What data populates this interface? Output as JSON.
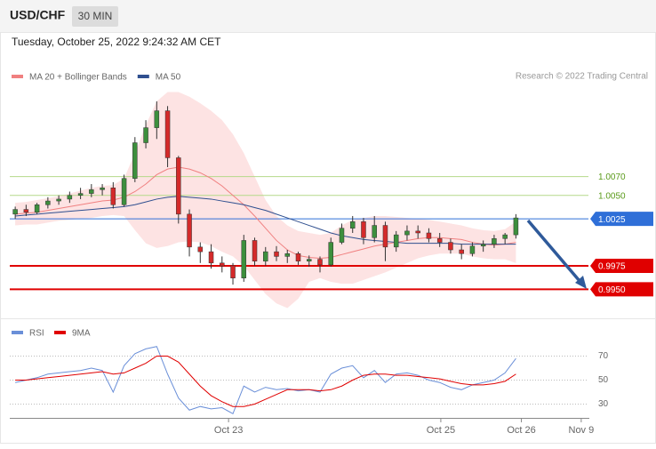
{
  "chart_data": [
    {
      "type": "candlestick",
      "title": "USD/CHF",
      "timeframe": "30 MIN",
      "subtitle": "Tuesday, October 25, 2022 9:24:32 AM CET",
      "source": "Research © 2022 Trading Central",
      "up_color": "#3d8f3d",
      "down_color": "#d42a2a",
      "xlim": [
        -0.5,
        52.5
      ],
      "ylim": [
        0.9922,
        1.0168
      ],
      "ohlc": [
        [
          1.003,
          1.0038,
          1.0025,
          1.0035
        ],
        [
          1.0035,
          1.004,
          1.0028,
          1.0032
        ],
        [
          1.0032,
          1.0042,
          1.003,
          1.004
        ],
        [
          1.004,
          1.0048,
          1.0036,
          1.0044
        ],
        [
          1.0044,
          1.005,
          1.004,
          1.0046
        ],
        [
          1.0046,
          1.0054,
          1.0042,
          1.005
        ],
        [
          1.005,
          1.0058,
          1.0046,
          1.0052
        ],
        [
          1.0052,
          1.0062,
          1.0048,
          1.0056
        ],
        [
          1.0056,
          1.0062,
          1.005,
          1.0058
        ],
        [
          1.0058,
          1.0064,
          1.0036,
          1.004
        ],
        [
          1.004,
          1.0072,
          1.0038,
          1.0068
        ],
        [
          1.0068,
          1.0112,
          1.0064,
          1.0106
        ],
        [
          1.0106,
          1.013,
          1.01,
          1.0122
        ],
        [
          1.0122,
          1.015,
          1.011,
          1.014
        ],
        [
          1.014,
          1.0145,
          1.008,
          1.009
        ],
        [
          1.009,
          1.0092,
          1.002,
          1.003
        ],
        [
          1.003,
          1.0035,
          0.9985,
          0.9995
        ],
        [
          0.9995,
          1.0,
          0.9978,
          0.999
        ],
        [
          0.999,
          0.9998,
          0.9972,
          0.9978
        ],
        [
          0.9978,
          0.9985,
          0.9968,
          0.9975
        ],
        [
          0.9975,
          0.9978,
          0.9955,
          0.9962
        ],
        [
          0.9962,
          1.0008,
          0.9958,
          1.0002
        ],
        [
          1.0002,
          1.0005,
          0.9975,
          0.998
        ],
        [
          0.998,
          0.9995,
          0.9975,
          0.999
        ],
        [
          0.999,
          0.9996,
          0.998,
          0.9985
        ],
        [
          0.9985,
          0.9992,
          0.9978,
          0.9988
        ],
        [
          0.9988,
          0.999,
          0.9976,
          0.998
        ],
        [
          0.998,
          0.9986,
          0.9974,
          0.9982
        ],
        [
          0.9982,
          0.9985,
          0.9968,
          0.9976
        ],
        [
          0.9976,
          1.0005,
          0.9974,
          1.0
        ],
        [
          1.0,
          1.002,
          0.9998,
          1.0015
        ],
        [
          1.0015,
          1.0028,
          1.001,
          1.0022
        ],
        [
          1.0022,
          1.0026,
          0.9998,
          1.0005
        ],
        [
          1.0005,
          1.0028,
          1.0,
          1.0018
        ],
        [
          1.0018,
          1.0022,
          0.998,
          0.9995
        ],
        [
          0.9995,
          1.0012,
          0.999,
          1.0008
        ],
        [
          1.0008,
          1.0018,
          1.0002,
          1.0012
        ],
        [
          1.0012,
          1.0018,
          1.0004,
          1.001
        ],
        [
          1.001,
          1.0015,
          1.0,
          1.0004
        ],
        [
          1.0004,
          1.001,
          0.9995,
          1.0
        ],
        [
          1.0,
          1.0004,
          0.9988,
          0.9992
        ],
        [
          0.9992,
          0.9998,
          0.9982,
          0.9988
        ],
        [
          0.9988,
          1.0,
          0.9985,
          0.9996
        ],
        [
          0.9996,
          1.0002,
          0.999,
          0.9998
        ],
        [
          0.9998,
          1.0008,
          0.9994,
          1.0004
        ],
        [
          1.0004,
          1.001,
          0.9998,
          1.0008
        ],
        [
          1.0008,
          1.003,
          1.0004,
          1.0026
        ]
      ],
      "series": [
        {
          "name": "MA 20 + Bollinger Bands",
          "color": "#f08080",
          "band_color": "#fde3e3",
          "values": [
            1.003,
            1.0031,
            1.0032,
            1.0034,
            1.0036,
            1.0038,
            1.004,
            1.0042,
            1.0044,
            1.0045,
            1.0048,
            1.0054,
            1.0062,
            1.0072,
            1.0078,
            1.008,
            1.0078,
            1.0074,
            1.0068,
            1.006,
            1.005,
            1.004,
            1.0028,
            1.0015,
            1.0002,
            0.9992,
            0.9986,
            0.9984,
            0.9983,
            0.9984,
            0.9987,
            0.999,
            0.9993,
            0.9996,
            0.9998,
            1.0,
            1.0002,
            1.0004,
            1.0005,
            1.0005,
            1.0004,
            1.0003,
            1.0,
            0.9998,
            0.9997,
            0.9998,
            1.0
          ],
          "upper": [
            1.0042,
            1.0043,
            1.0045,
            1.0047,
            1.0049,
            1.0052,
            1.0055,
            1.0058,
            1.006,
            1.0061,
            1.0068,
            1.0095,
            1.0125,
            1.015,
            1.016,
            1.016,
            1.0155,
            1.0148,
            1.014,
            1.013,
            1.0115,
            1.0095,
            1.007,
            1.0045,
            1.0028,
            1.0018,
            1.0012,
            1.001,
            1.0008,
            1.001,
            1.0018,
            1.0024,
            1.0026,
            1.0028,
            1.0028,
            1.0027,
            1.0026,
            1.0025,
            1.0024,
            1.0022,
            1.002,
            1.0018,
            1.0015,
            1.0013,
            1.0012,
            1.0014,
            1.0022
          ],
          "lower": [
            1.0018,
            1.0019,
            1.0019,
            1.0021,
            1.0023,
            1.0024,
            1.0025,
            1.0026,
            1.0028,
            1.0029,
            1.0028,
            1.0013,
            0.9999,
            0.9994,
            0.9996,
            1.0,
            1.0001,
            1.0,
            0.9996,
            0.999,
            0.9985,
            0.9975,
            0.996,
            0.9945,
            0.9935,
            0.993,
            0.994,
            0.9958,
            0.9962,
            0.9958,
            0.9956,
            0.9956,
            0.996,
            0.9964,
            0.9968,
            0.9973,
            0.9978,
            0.9983,
            0.9986,
            0.9988,
            0.9988,
            0.9988,
            0.9985,
            0.9983,
            0.9982,
            0.9982,
            0.9978
          ]
        },
        {
          "name": "MA 50",
          "color": "#2f4f8f",
          "values": [
            1.0028,
            1.0029,
            1.003,
            1.0031,
            1.0032,
            1.0033,
            1.0034,
            1.0035,
            1.0036,
            1.0037,
            1.0038,
            1.004,
            1.0043,
            1.0046,
            1.0048,
            1.0049,
            1.0048,
            1.0047,
            1.0046,
            1.0044,
            1.0042,
            1.004,
            1.0037,
            1.0034,
            1.003,
            1.0026,
            1.0022,
            1.0018,
            1.0014,
            1.001,
            1.0007,
            1.0005,
            1.0003,
            1.0002,
            1.0001,
            1.0,
            0.9999,
            0.9999,
            0.9999,
            0.9999,
            0.9999,
            0.9998,
            0.9998,
            0.9998,
            0.9998,
            0.9998,
            0.9998
          ]
        }
      ],
      "levels": [
        {
          "value": 1.007,
          "label": "1.0070",
          "color": "#b5d98a",
          "text_color": "#5a9a1a",
          "style": "text"
        },
        {
          "value": 1.005,
          "label": "1.0050",
          "color": "#b5d98a",
          "text_color": "#5a9a1a",
          "style": "text"
        },
        {
          "value": 1.0025,
          "label": "1.0025",
          "color": "#2f6fd8",
          "text_color": "#ffffff",
          "style": "box"
        },
        {
          "value": 0.9975,
          "label": "0.9975",
          "color": "#e00000",
          "text_color": "#ffffff",
          "style": "box"
        },
        {
          "value": 0.995,
          "label": "0.9950",
          "color": "#e00000",
          "text_color": "#ffffff",
          "style": "box"
        }
      ]
    },
    {
      "type": "line",
      "xlim": [
        -0.5,
        52.5
      ],
      "ylim": [
        20,
        80
      ],
      "yticks": [
        70,
        50,
        30
      ],
      "grid": true,
      "xticks": [
        {
          "value": 19.6,
          "label": "Oct 23"
        },
        {
          "value": 39.1,
          "label": "Oct 25"
        },
        {
          "value": 46.5,
          "label": "Oct 26"
        },
        {
          "value": 52,
          "label": "Nov 9"
        }
      ],
      "series": [
        {
          "name": "RSI",
          "color": "#6a8fd8",
          "values": [
            48,
            50,
            52,
            55,
            56,
            57,
            58,
            60,
            58,
            40,
            62,
            72,
            76,
            78,
            55,
            35,
            25,
            28,
            26,
            27,
            22,
            45,
            40,
            44,
            42,
            43,
            41,
            42,
            40,
            55,
            60,
            62,
            52,
            58,
            48,
            55,
            56,
            54,
            50,
            48,
            44,
            42,
            46,
            48,
            50,
            56,
            68
          ]
        },
        {
          "name": "9MA",
          "color": "#e00000",
          "values": [
            50,
            50,
            51,
            52,
            53,
            54,
            55,
            56,
            57,
            55,
            56,
            60,
            64,
            70,
            70,
            65,
            55,
            45,
            37,
            32,
            28,
            28,
            30,
            34,
            38,
            42,
            42,
            42,
            41,
            42,
            45,
            50,
            54,
            55,
            55,
            54,
            54,
            53,
            52,
            51,
            49,
            47,
            46,
            46,
            47,
            49,
            55
          ]
        }
      ]
    }
  ]
}
